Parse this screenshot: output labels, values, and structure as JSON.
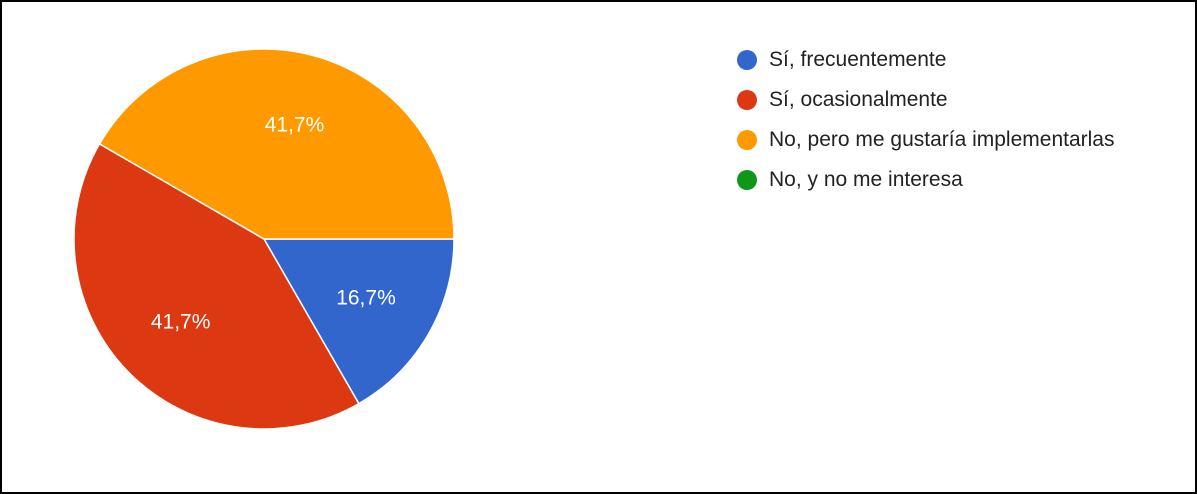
{
  "chart_data": {
    "type": "pie",
    "title": "",
    "slices": [
      {
        "label": "Sí, frecuentemente",
        "value": 16.7,
        "value_label": "16,7%",
        "color": "#3366cc"
      },
      {
        "label": "Sí, ocasionalmente",
        "value": 41.7,
        "value_label": "41,7%",
        "color": "#dc3912"
      },
      {
        "label": "No, pero me gustaría implementarlas",
        "value": 41.7,
        "value_label": "41,7%",
        "color": "#ff9900"
      },
      {
        "label": "No, y no me interesa",
        "value": 0,
        "value_label": "",
        "color": "#109618"
      }
    ],
    "legend_position": "right"
  }
}
